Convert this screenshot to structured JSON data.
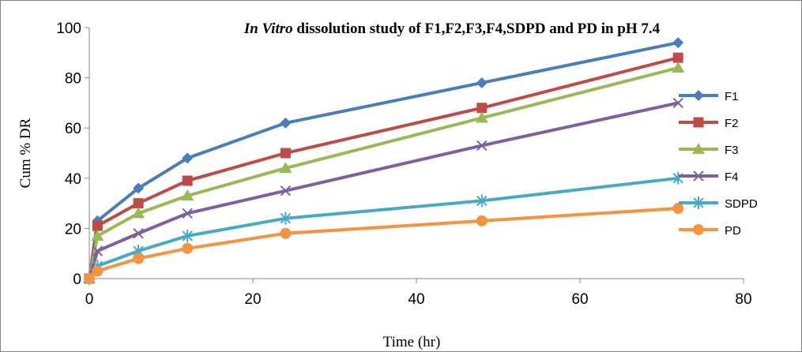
{
  "chart_data": {
    "type": "line",
    "title_italic": "In Vitro",
    "title_rest": " dissolution study of F1,F2,F3,F4,SDPD and PD in pH 7.4",
    "xlabel": "Time (hr)",
    "ylabel": "Cum % DR",
    "xlim": [
      0,
      80
    ],
    "ylim": [
      0,
      100
    ],
    "x_ticks": [
      "0",
      "20",
      "40",
      "60",
      "80"
    ],
    "y_ticks": [
      "0",
      "20",
      "40",
      "60",
      "80",
      "100"
    ],
    "grid": false,
    "legend_position": "right",
    "x": [
      0,
      1,
      6,
      12,
      24,
      48,
      72
    ],
    "series": [
      {
        "name": "F1",
        "color": "#4a7ebb",
        "marker": "diamond",
        "values": [
          0,
          23,
          36,
          48,
          62,
          78,
          94
        ]
      },
      {
        "name": "F2",
        "color": "#be4b48",
        "marker": "square",
        "values": [
          0,
          21,
          30,
          39,
          50,
          68,
          88
        ]
      },
      {
        "name": "F3",
        "color": "#98b954",
        "marker": "triangle",
        "values": [
          0,
          17,
          26,
          33,
          44,
          64,
          84
        ]
      },
      {
        "name": "F4",
        "color": "#7d60a0",
        "marker": "x",
        "values": [
          0,
          11,
          18,
          26,
          35,
          53,
          70
        ]
      },
      {
        "name": "SDPD",
        "color": "#46aac5",
        "marker": "star",
        "values": [
          0,
          5,
          11,
          17,
          24,
          31,
          40
        ]
      },
      {
        "name": "PD",
        "color": "#f69240",
        "marker": "circle",
        "values": [
          0,
          3,
          8,
          12,
          18,
          23,
          28
        ]
      }
    ]
  }
}
